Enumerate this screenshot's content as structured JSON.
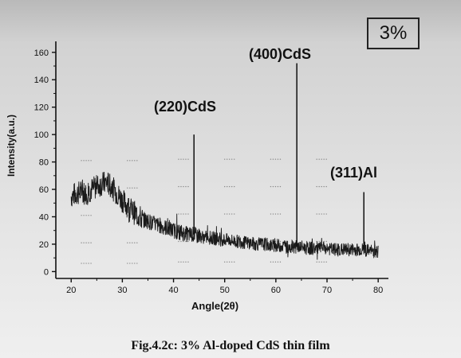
{
  "badge": "3%",
  "caption": "Fig.4.2c: 3% Al-doped CdS thin film",
  "chart_data": {
    "type": "line",
    "xlabel": "Angle(2θ)",
    "ylabel": "Intensity(a.u.)",
    "xlim": [
      17,
      82
    ],
    "ylim": [
      -5,
      168
    ],
    "xticks": [
      20,
      30,
      40,
      50,
      60,
      70,
      80
    ],
    "yticks": [
      0,
      20,
      40,
      60,
      80,
      100,
      120,
      140,
      160
    ],
    "grid": false,
    "annotations": [
      {
        "text": "(220)CdS",
        "x": 44,
        "y": 100
      },
      {
        "text": "(400)CdS",
        "x": 64,
        "y": 152
      },
      {
        "text": "(311)Al",
        "x": 77.5,
        "y": 58
      }
    ],
    "series": [
      {
        "x": [
          20,
          21,
          22,
          23,
          24,
          25,
          26,
          27,
          28,
          29,
          30,
          31,
          32,
          33,
          34,
          35,
          36,
          37,
          38,
          39,
          40,
          41,
          42,
          43,
          43.8,
          44.0,
          44.2,
          45,
          46,
          47,
          48,
          49,
          50,
          51,
          52,
          53,
          54,
          55,
          56,
          57,
          58,
          59,
          60,
          61,
          62,
          63,
          63.8,
          64.1,
          64.4,
          65,
          66,
          67,
          68,
          69,
          70,
          71,
          72,
          73,
          74,
          75,
          76,
          77,
          77.2,
          77.5,
          77.8,
          78,
          79,
          80
        ],
        "y": [
          55,
          57,
          58,
          57,
          60,
          62,
          64,
          65,
          61,
          57,
          52,
          48,
          44,
          41,
          38,
          37,
          35,
          34,
          33,
          31,
          30,
          29,
          28,
          27,
          27,
          100,
          26,
          26,
          25,
          25,
          24,
          24,
          23,
          23,
          22,
          22,
          21,
          21,
          20,
          20,
          20,
          19,
          19,
          19,
          18,
          18,
          18,
          152,
          18,
          18,
          17,
          17,
          17,
          17,
          17,
          16,
          16,
          16,
          16,
          16,
          16,
          16,
          58,
          16,
          15,
          15,
          15,
          15
        ]
      }
    ]
  }
}
